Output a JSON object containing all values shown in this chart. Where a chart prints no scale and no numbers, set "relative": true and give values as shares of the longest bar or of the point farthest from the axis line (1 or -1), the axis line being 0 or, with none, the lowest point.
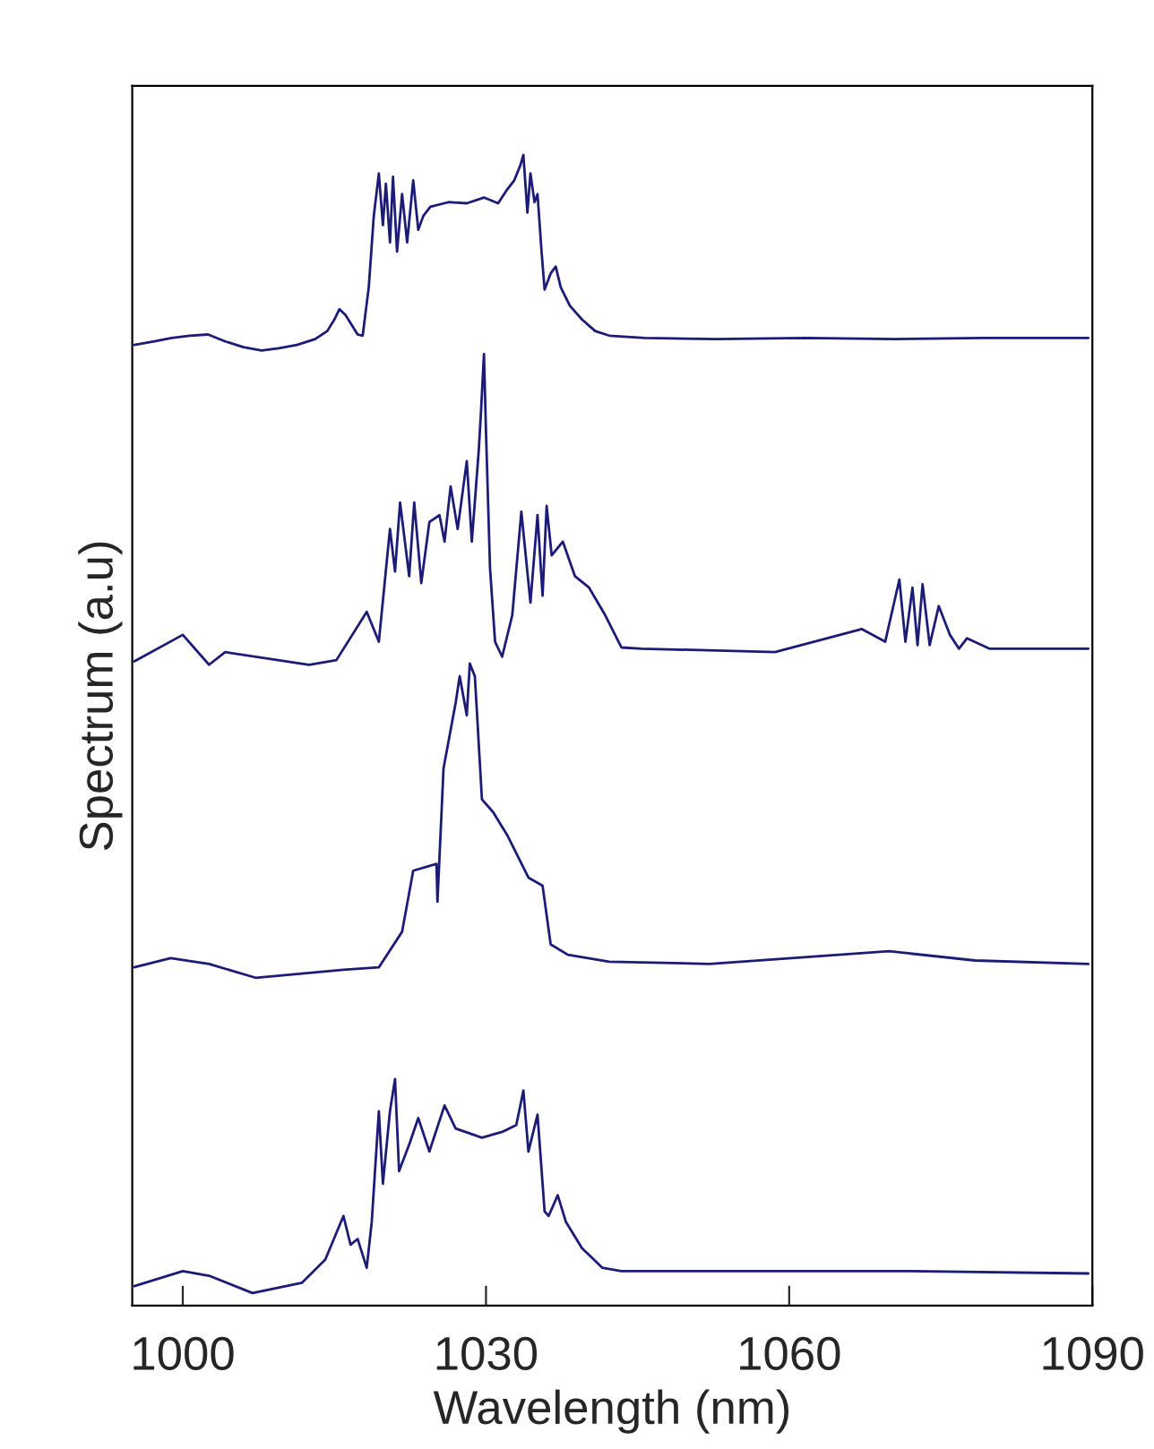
{
  "chart_data": {
    "type": "line",
    "xlabel": "Wavelength (nm)",
    "ylabel": "Spectrum (a.u)",
    "relative": true,
    "xlim": [
      995,
      1090
    ],
    "xticks": [
      1000,
      1030,
      1060,
      1090
    ],
    "grid": false,
    "legend": false,
    "line_style": "solid",
    "marker": "none",
    "series": [
      {
        "color": "#1c1c78",
        "x": [
          995.2,
          997.2,
          998.9,
          1000.7,
          1002.5,
          1004.2,
          1006.0,
          1007.8,
          1009.5,
          1011.3,
          1013.1,
          1014.3,
          1015.0,
          1015.5,
          1016.1,
          1016.6,
          1017.3,
          1017.8,
          1018.4,
          1018.9,
          1019.4,
          1019.8,
          1020.1,
          1020.5,
          1020.8,
          1021.2,
          1021.7,
          1022.2,
          1022.8,
          1023.3,
          1023.8,
          1024.5,
          1026.3,
          1028.1,
          1029.8,
          1031.2,
          1032.1,
          1032.8,
          1033.4,
          1033.7,
          1034.1,
          1034.4,
          1034.8,
          1035.1,
          1035.5,
          1035.8,
          1036.4,
          1036.9,
          1037.4,
          1038.3,
          1039.5,
          1040.8,
          1042.2,
          1045.7,
          1052.8,
          1061.6,
          1070.4,
          1079.2,
          1089.6
        ],
        "values": [
          0.835,
          0.838,
          0.841,
          0.843,
          0.844,
          0.838,
          0.833,
          0.83,
          0.832,
          0.835,
          0.84,
          0.847,
          0.857,
          0.866,
          0.861,
          0.854,
          0.844,
          0.843,
          0.885,
          0.947,
          0.984,
          0.939,
          0.975,
          0.924,
          0.981,
          0.916,
          0.966,
          0.924,
          0.978,
          0.935,
          0.947,
          0.955,
          0.959,
          0.958,
          0.963,
          0.958,
          0.97,
          0.978,
          0.991,
          1.0,
          0.95,
          0.984,
          0.959,
          0.966,
          0.916,
          0.883,
          0.897,
          0.903,
          0.885,
          0.869,
          0.857,
          0.847,
          0.843,
          0.841,
          0.84,
          0.841,
          0.84,
          0.841,
          0.841
        ]
      },
      {
        "color": "#1c1c78",
        "x": [
          995.2,
          1000.0,
          1002.6,
          1004.2,
          1012.5,
          1015.2,
          1018.2,
          1019.4,
          1020.5,
          1021.0,
          1021.5,
          1022.4,
          1022.9,
          1023.6,
          1024.4,
          1025.4,
          1025.9,
          1026.5,
          1027.2,
          1028.1,
          1028.6,
          1029.3,
          1029.5,
          1029.8,
          1030.0,
          1030.4,
          1030.9,
          1031.6,
          1032.6,
          1033.5,
          1034.4,
          1035.1,
          1035.6,
          1036.0,
          1036.5,
          1037.6,
          1038.8,
          1040.2,
          1041.8,
          1043.4,
          1045.4,
          1058.6,
          1067.2,
          1069.5,
          1070.9,
          1071.5,
          1072.2,
          1072.7,
          1073.2,
          1073.9,
          1074.8,
          1075.9,
          1076.8,
          1077.6,
          1079.8,
          1084.9,
          1089.6
        ],
        "values": [
          0.56,
          0.583,
          0.557,
          0.568,
          0.557,
          0.561,
          0.603,
          0.577,
          0.675,
          0.638,
          0.698,
          0.634,
          0.698,
          0.628,
          0.681,
          0.687,
          0.664,
          0.712,
          0.675,
          0.734,
          0.664,
          0.745,
          0.776,
          0.827,
          0.76,
          0.641,
          0.577,
          0.564,
          0.6,
          0.69,
          0.611,
          0.687,
          0.617,
          0.695,
          0.652,
          0.664,
          0.634,
          0.624,
          0.6,
          0.572,
          0.571,
          0.568,
          0.588,
          0.577,
          0.631,
          0.577,
          0.624,
          0.574,
          0.627,
          0.574,
          0.608,
          0.583,
          0.571,
          0.58,
          0.571,
          0.571,
          0.571
        ]
      },
      {
        "color": "#1c1c78",
        "x": [
          995.2,
          998.8,
          1002.6,
          1007.2,
          1015.9,
          1019.4,
          1021.7,
          1022.8,
          1025.1,
          1025.2,
          1025.8,
          1027.0,
          1027.4,
          1028.1,
          1028.4,
          1028.9,
          1029.6,
          1030.7,
          1032.1,
          1034.2,
          1035.6,
          1036.4,
          1038.1,
          1042.2,
          1052.1,
          1069.9,
          1078.4,
          1089.6
        ],
        "values": [
          0.294,
          0.302,
          0.297,
          0.285,
          0.292,
          0.294,
          0.325,
          0.378,
          0.384,
          0.351,
          0.467,
          0.524,
          0.547,
          0.513,
          0.558,
          0.547,
          0.44,
          0.429,
          0.409,
          0.372,
          0.365,
          0.314,
          0.305,
          0.299,
          0.297,
          0.308,
          0.3,
          0.297
        ]
      },
      {
        "color": "#1c1c78",
        "x": [
          995.2,
          1000.0,
          1002.6,
          1006.9,
          1011.8,
          1014.1,
          1015.9,
          1016.6,
          1017.3,
          1018.2,
          1018.7,
          1019.4,
          1019.8,
          1020.5,
          1021.0,
          1021.4,
          1022.4,
          1023.3,
          1024.4,
          1025.9,
          1027.0,
          1029.6,
          1031.6,
          1033.0,
          1033.7,
          1034.2,
          1035.1,
          1035.8,
          1036.2,
          1037.1,
          1037.9,
          1039.5,
          1041.5,
          1043.4,
          1052.1,
          1071.8,
          1089.6
        ],
        "values": [
          0.017,
          0.03,
          0.026,
          0.011,
          0.02,
          0.04,
          0.078,
          0.053,
          0.058,
          0.033,
          0.073,
          0.169,
          0.106,
          0.169,
          0.197,
          0.117,
          0.14,
          0.163,
          0.134,
          0.174,
          0.154,
          0.146,
          0.151,
          0.157,
          0.187,
          0.134,
          0.166,
          0.082,
          0.078,
          0.096,
          0.073,
          0.05,
          0.033,
          0.03,
          0.03,
          0.03,
          0.028
        ]
      }
    ]
  }
}
